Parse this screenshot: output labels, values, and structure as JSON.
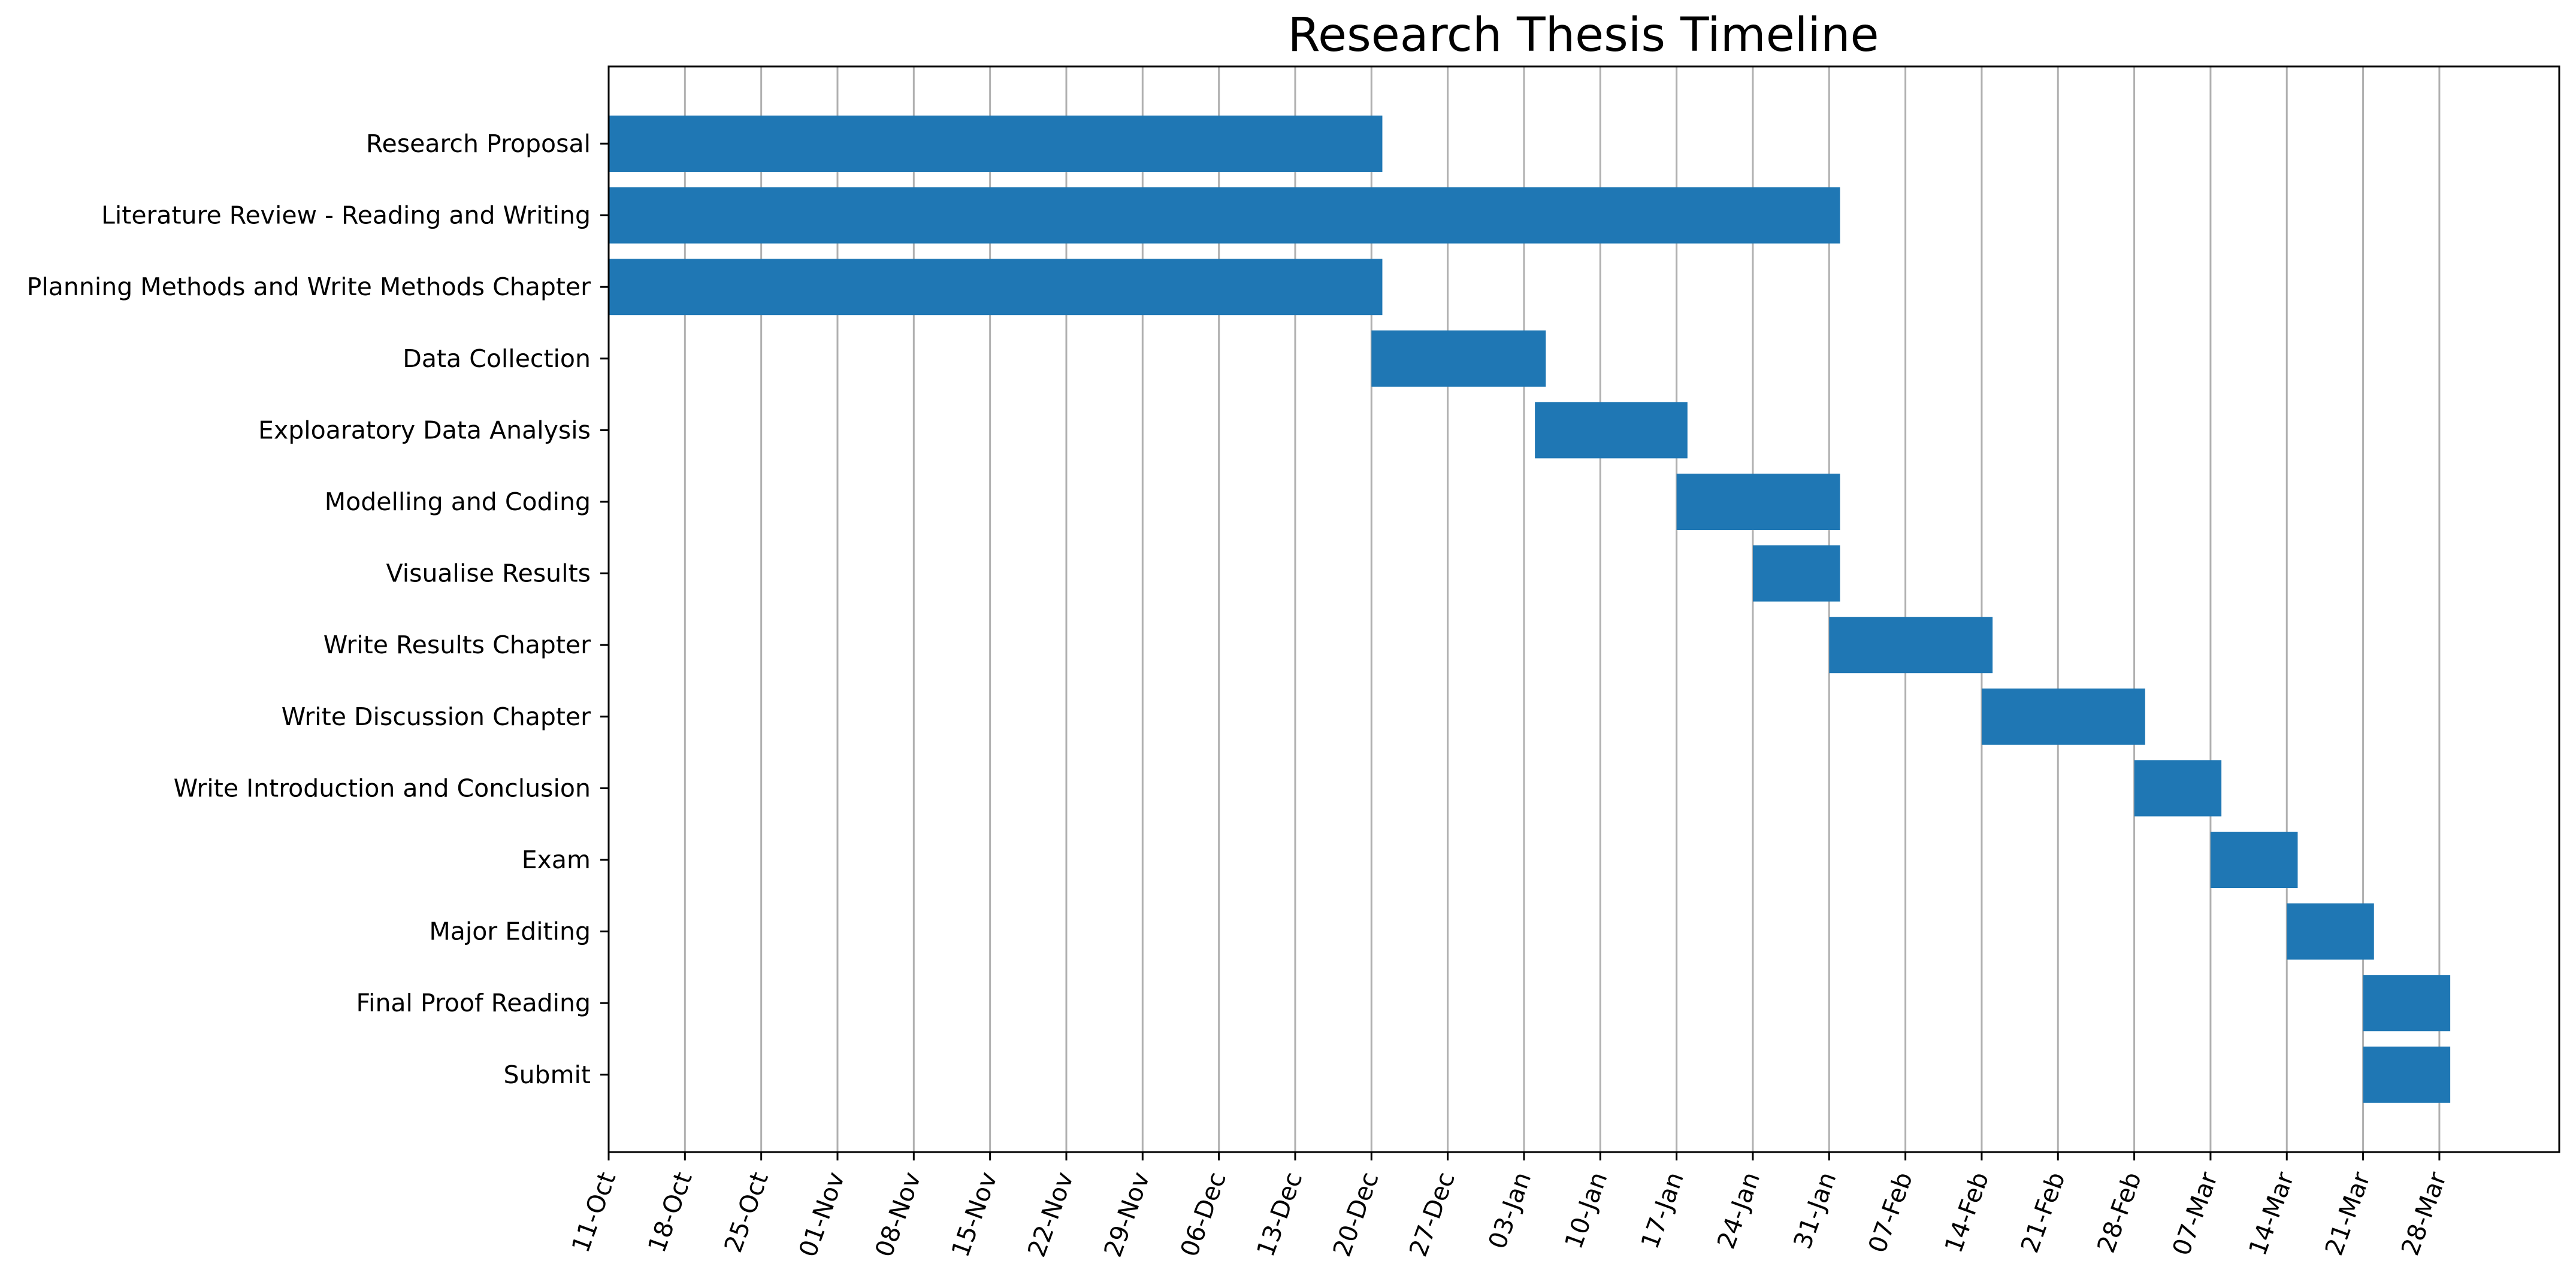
{
  "chart_data": {
    "type": "bar",
    "orientation": "horizontal",
    "title": "Research Thesis Timeline",
    "xlabel": "",
    "ylabel": "",
    "grid": "vertical",
    "bar_color": "#1f77b4",
    "x_axis": "date",
    "xlim": [
      "2021-10-11",
      "2022-04-08"
    ],
    "x_ticks": [
      {
        "date": "2021-10-11",
        "label": "11-Oct"
      },
      {
        "date": "2021-10-18",
        "label": "18-Oct"
      },
      {
        "date": "2021-10-25",
        "label": "25-Oct"
      },
      {
        "date": "2021-11-01",
        "label": "01-Nov"
      },
      {
        "date": "2021-11-08",
        "label": "08-Nov"
      },
      {
        "date": "2021-11-15",
        "label": "15-Nov"
      },
      {
        "date": "2021-11-22",
        "label": "22-Nov"
      },
      {
        "date": "2021-11-29",
        "label": "29-Nov"
      },
      {
        "date": "2021-12-06",
        "label": "06-Dec"
      },
      {
        "date": "2021-12-13",
        "label": "13-Dec"
      },
      {
        "date": "2021-12-20",
        "label": "20-Dec"
      },
      {
        "date": "2021-12-27",
        "label": "27-Dec"
      },
      {
        "date": "2022-01-03",
        "label": "03-Jan"
      },
      {
        "date": "2022-01-10",
        "label": "10-Jan"
      },
      {
        "date": "2022-01-17",
        "label": "17-Jan"
      },
      {
        "date": "2022-01-24",
        "label": "24-Jan"
      },
      {
        "date": "2022-01-31",
        "label": "31-Jan"
      },
      {
        "date": "2022-02-07",
        "label": "07-Feb"
      },
      {
        "date": "2022-02-14",
        "label": "14-Feb"
      },
      {
        "date": "2022-02-21",
        "label": "21-Feb"
      },
      {
        "date": "2022-02-28",
        "label": "28-Feb"
      },
      {
        "date": "2022-03-07",
        "label": "07-Mar"
      },
      {
        "date": "2022-03-14",
        "label": "14-Mar"
      },
      {
        "date": "2022-03-21",
        "label": "21-Mar"
      },
      {
        "date": "2022-03-28",
        "label": "28-Mar"
      }
    ],
    "tasks": [
      {
        "name": "Research Proposal",
        "start": "2021-10-11",
        "end": "2021-12-21"
      },
      {
        "name": "Literature Review - Reading and Writing",
        "start": "2021-10-11",
        "end": "2022-02-01"
      },
      {
        "name": "Planning Methods and Write Methods Chapter",
        "start": "2021-10-11",
        "end": "2021-12-21"
      },
      {
        "name": "Data Collection",
        "start": "2021-12-20",
        "end": "2022-01-05"
      },
      {
        "name": "Exploaratory Data Analysis",
        "start": "2022-01-04",
        "end": "2022-01-18"
      },
      {
        "name": "Modelling and Coding",
        "start": "2022-01-17",
        "end": "2022-02-01"
      },
      {
        "name": "Visualise Results",
        "start": "2022-01-24",
        "end": "2022-02-01"
      },
      {
        "name": "Write Results Chapter",
        "start": "2022-01-31",
        "end": "2022-02-15"
      },
      {
        "name": "Write Discussion Chapter",
        "start": "2022-02-14",
        "end": "2022-03-01"
      },
      {
        "name": "Write Introduction and Conclusion",
        "start": "2022-02-28",
        "end": "2022-03-08"
      },
      {
        "name": "Exam",
        "start": "2022-03-07",
        "end": "2022-03-15"
      },
      {
        "name": "Major Editing",
        "start": "2022-03-14",
        "end": "2022-03-22"
      },
      {
        "name": "Final Proof Reading",
        "start": "2022-03-21",
        "end": "2022-03-29"
      },
      {
        "name": "Submit",
        "start": "2022-03-21",
        "end": "2022-03-29"
      }
    ]
  }
}
